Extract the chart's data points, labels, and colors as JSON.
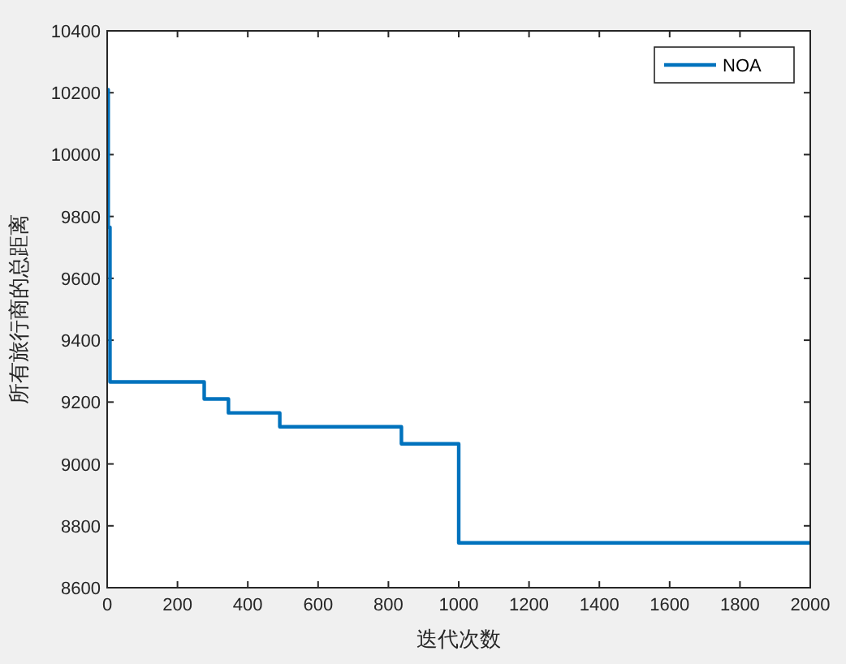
{
  "chart_data": {
    "type": "step",
    "xlabel": "迭代次数",
    "ylabel": "所有旅行商的总距离",
    "x": [
      0,
      3,
      8,
      276,
      345,
      491,
      837,
      1000,
      2000
    ],
    "series": [
      {
        "name": "NOA",
        "color": "#0072bd",
        "values": [
          10210,
          9765,
          9265,
          9210,
          9165,
          9120,
          9065,
          8745,
          8745
        ]
      }
    ],
    "xlim": [
      0,
      2000
    ],
    "xticks": [
      0,
      200,
      400,
      600,
      800,
      1000,
      1200,
      1400,
      1600,
      1800,
      2000
    ],
    "ylim": [
      8600,
      10400
    ],
    "yticks": [
      8600,
      8800,
      9000,
      9200,
      9400,
      9600,
      9800,
      10000,
      10200,
      10400
    ],
    "grid": false,
    "legend": "top right"
  }
}
